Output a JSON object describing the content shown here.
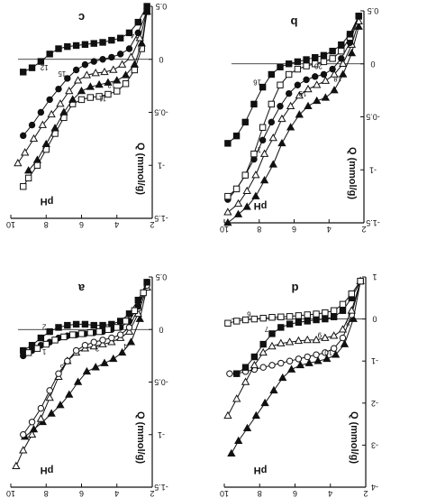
{
  "chart_data": [
    {
      "panel": "c",
      "type": "line",
      "xlabel": "pH",
      "ylabel": "Q (mmol/g)",
      "x_ticks": [
        "2",
        "4",
        "6",
        "8",
        "10"
      ],
      "y_ticks": [
        "-1.5",
        "-1",
        "-0.5",
        "0",
        "0.5"
      ],
      "xlim": [
        2,
        10
      ],
      "ylim": [
        0.5,
        -1.5
      ],
      "series": [
        {
          "name": "11",
          "marker": "open-square",
          "x": [
            2.3,
            2.6,
            3,
            3.5,
            4,
            4.5,
            5,
            5.5,
            6,
            6.5,
            7,
            7.5,
            8,
            8.5,
            9,
            9.3
          ],
          "y": [
            0.45,
            0.1,
            -0.1,
            -0.23,
            -0.3,
            -0.33,
            -0.35,
            -0.36,
            -0.38,
            -0.42,
            -0.55,
            -0.7,
            -0.85,
            -1,
            -1.12,
            -1.2
          ]
        },
        {
          "name": "13",
          "marker": "filled-triangle",
          "x": [
            2.3,
            2.6,
            3,
            3.5,
            4,
            4.5,
            5,
            5.5,
            6,
            6.5,
            7,
            7.5,
            8,
            8.5,
            9
          ],
          "y": [
            0.45,
            0.15,
            -0.05,
            -0.15,
            -0.2,
            -0.22,
            -0.24,
            -0.26,
            -0.3,
            -0.38,
            -0.5,
            -0.65,
            -0.8,
            -0.95,
            -1.05
          ]
        },
        {
          "name": "14",
          "marker": "open-triangle",
          "x": [
            2.3,
            2.7,
            3.2,
            3.7,
            4.2,
            4.7,
            5.2,
            5.7,
            6.2,
            6.7,
            7.2,
            7.7,
            8.2,
            8.7,
            9.2,
            9.6
          ],
          "y": [
            0.45,
            0.2,
            0.02,
            -0.05,
            -0.1,
            -0.12,
            -0.13,
            -0.15,
            -0.2,
            -0.3,
            -0.42,
            -0.52,
            -0.62,
            -0.75,
            -0.88,
            -0.98
          ]
        },
        {
          "name": "15",
          "marker": "filled-circle",
          "x": [
            2.3,
            2.8,
            3.3,
            3.8,
            4.3,
            4.8,
            5.3,
            5.8,
            6.3,
            6.8,
            7.3,
            7.8,
            8.3,
            8.8,
            9.3
          ],
          "y": [
            0.45,
            0.25,
            0.1,
            0.05,
            0.02,
            0,
            -0.02,
            -0.05,
            -0.1,
            -0.18,
            -0.28,
            -0.38,
            -0.5,
            -0.62,
            -0.72
          ]
        },
        {
          "name": "12",
          "marker": "filled-square",
          "x": [
            2.3,
            2.8,
            3.3,
            3.8,
            4.3,
            4.8,
            5.3,
            5.8,
            6.3,
            6.8,
            7.3,
            7.8,
            8.3,
            8.8,
            9.3
          ],
          "y": [
            0.5,
            0.35,
            0.25,
            0.2,
            0.18,
            0.16,
            0.15,
            0.14,
            0.13,
            0.12,
            0.1,
            0.05,
            -0.02,
            -0.08,
            -0.12
          ]
        }
      ]
    },
    {
      "panel": "b",
      "type": "line",
      "xlabel": "pH",
      "ylabel": "Q (mmol/g)",
      "x_ticks": [
        "2",
        "4",
        "6",
        "8",
        "10"
      ],
      "y_ticks": [
        "-1.5",
        "-1",
        "-0.5",
        "0",
        "0.5"
      ],
      "xlim": [
        2,
        10
      ],
      "ylim": [
        0.5,
        -1.5
      ],
      "series": [
        {
          "name": "18",
          "marker": "filled-triangle",
          "x": [
            2.3,
            2.7,
            3.2,
            3.7,
            4.2,
            4.7,
            5.2,
            5.7,
            6.2,
            6.7,
            7.2,
            7.7,
            8.2,
            8.7,
            9.2,
            9.8
          ],
          "y": [
            0.35,
            0.1,
            -0.1,
            -0.25,
            -0.32,
            -0.35,
            -0.4,
            -0.48,
            -0.6,
            -0.75,
            -0.95,
            -1.1,
            -1.25,
            -1.35,
            -1.42,
            -1.5
          ]
        },
        {
          "name": "19",
          "marker": "open-triangle",
          "x": [
            2.3,
            2.7,
            3.2,
            3.7,
            4.2,
            4.7,
            5.2,
            5.7,
            6.2,
            6.7,
            7.2,
            7.7,
            8.2,
            8.7,
            9.2,
            9.8
          ],
          "y": [
            0.4,
            0.18,
            0,
            -0.1,
            -0.16,
            -0.2,
            -0.24,
            -0.3,
            -0.4,
            -0.52,
            -0.7,
            -0.85,
            -1.05,
            -1.2,
            -1.32,
            -1.4
          ]
        },
        {
          "name": "17",
          "marker": "filled-circle",
          "x": [
            2.3,
            2.8,
            3.3,
            3.8,
            4.3,
            4.8,
            5.3,
            5.8,
            6.3,
            6.8,
            7.3,
            7.8,
            8.3,
            8.8,
            9.3,
            9.8
          ],
          "y": [
            0.45,
            0.2,
            0.05,
            -0.05,
            -0.1,
            -0.12,
            -0.15,
            -0.2,
            -0.28,
            -0.4,
            -0.55,
            -0.72,
            -0.9,
            -1.05,
            -1.18,
            -1.28
          ]
        },
        {
          "name": "20",
          "marker": "open-square",
          "x": [
            2.3,
            2.8,
            3.3,
            3.8,
            4.3,
            4.8,
            5.3,
            5.8,
            6.3,
            6.8,
            7.3,
            7.8,
            8.3,
            8.8,
            9.3,
            9.8
          ],
          "y": [
            0.45,
            0.25,
            0.12,
            0.05,
            0.02,
            0,
            -0.02,
            -0.05,
            -0.1,
            -0.2,
            -0.38,
            -0.6,
            -0.85,
            -1.05,
            -1.18,
            -1.25
          ]
        },
        {
          "name": "16",
          "marker": "filled-square",
          "x": [
            2.3,
            2.8,
            3.3,
            3.8,
            4.3,
            4.8,
            5.3,
            5.8,
            6.3,
            6.8,
            7.3,
            7.8,
            8.3,
            8.8,
            9.3,
            9.8
          ],
          "y": [
            0.45,
            0.28,
            0.18,
            0.12,
            0.08,
            0.06,
            0.04,
            0.02,
            0,
            -0.03,
            -0.1,
            -0.22,
            -0.38,
            -0.55,
            -0.68,
            -0.75
          ]
        }
      ]
    },
    {
      "panel": "a",
      "type": "line",
      "xlabel": "pH",
      "ylabel": "Q (mmol/g)",
      "x_ticks": [
        "2",
        "4",
        "6",
        "8",
        "10"
      ],
      "y_ticks": [
        "-1.5",
        "-1",
        "-0.5",
        "0",
        "0.5"
      ],
      "xlim": [
        2,
        10
      ],
      "ylim": [
        0.5,
        -1.5
      ],
      "series": [
        {
          "name": "4",
          "marker": "filled-triangle",
          "x": [
            2.3,
            2.7,
            3.2,
            3.7,
            4.2,
            4.7,
            5.2,
            5.7,
            6.2,
            6.7,
            7.2,
            7.7,
            8.2,
            8.7,
            9.2
          ],
          "y": [
            0.4,
            0.1,
            -0.12,
            -0.22,
            -0.28,
            -0.32,
            -0.36,
            -0.4,
            -0.5,
            -0.62,
            -0.72,
            -0.8,
            -0.88,
            -0.95,
            -1.02
          ]
        },
        {
          "name": "3",
          "marker": "open-triangle",
          "x": [
            2.3,
            2.8,
            3.3,
            3.8,
            4.3,
            4.8,
            5.3,
            5.8,
            6.3,
            6.8,
            7.3,
            7.8,
            8.3,
            8.8,
            9.3,
            9.7
          ],
          "y": [
            0.4,
            0.15,
            -0.02,
            -0.08,
            -0.12,
            -0.14,
            -0.16,
            -0.18,
            -0.22,
            -0.3,
            -0.45,
            -0.65,
            -0.85,
            -1,
            -1.15,
            -1.3
          ]
        },
        {
          "name": "5",
          "marker": "open-circle",
          "x": [
            2.3,
            2.8,
            3.3,
            3.8,
            4.3,
            4.8,
            5.3,
            5.8,
            6.3,
            6.8,
            7.3,
            7.8,
            8.3,
            8.8,
            9.3
          ],
          "y": [
            0.42,
            0.2,
            0.02,
            -0.05,
            -0.08,
            -0.1,
            -0.12,
            -0.15,
            -0.2,
            -0.3,
            -0.42,
            -0.58,
            -0.75,
            -0.88,
            -1
          ]
        },
        {
          "name": "1",
          "marker": "filled-circle",
          "x": [
            2.3,
            2.8,
            3.3,
            3.8,
            4.3,
            4.8,
            5.3,
            5.8,
            6.3,
            6.8,
            7.3,
            7.8,
            8.3,
            8.8,
            9.3
          ],
          "y": [
            0.45,
            0.22,
            0.08,
            0.02,
            0,
            -0.02,
            -0.03,
            -0.04,
            -0.05,
            -0.06,
            -0.08,
            -0.12,
            -0.15,
            -0.2,
            -0.25
          ]
        },
        {
          "name": "2",
          "marker": "filled-square",
          "x": [
            2.3,
            2.8,
            3.3,
            3.8,
            4.3,
            4.8,
            5.3,
            5.8,
            6.3,
            6.8,
            7.3,
            7.8,
            8.3,
            8.8,
            9.3
          ],
          "y": [
            0.45,
            0.28,
            0.15,
            0.08,
            0.05,
            0.04,
            0.04,
            0.05,
            0.05,
            0.04,
            0.02,
            -0.02,
            -0.08,
            -0.15,
            -0.2
          ]
        },
        {
          "name": "",
          "marker": "open-square",
          "x": [
            2.5,
            3,
            3.5,
            4,
            4.5,
            5,
            5.5,
            6,
            6.5,
            7,
            7.5,
            8,
            8.5,
            9
          ],
          "y": [
            0.35,
            0.18,
            0.08,
            0.02,
            0,
            -0.02,
            -0.03,
            -0.04,
            -0.05,
            -0.07,
            -0.1,
            -0.14,
            -0.18,
            -0.22
          ]
        }
      ]
    },
    {
      "panel": "d",
      "type": "line",
      "xlabel": "pH",
      "ylabel": "Q (mmol/g)",
      "x_ticks": [
        "2",
        "4",
        "6",
        "8",
        "10"
      ],
      "y_ticks": [
        "-4",
        "-3",
        "-2",
        "-1",
        "0",
        "1"
      ],
      "xlim": [
        2,
        10
      ],
      "ylim": [
        1,
        -4
      ],
      "series": [
        {
          "name": "8",
          "marker": "filled-triangle",
          "x": [
            2.3,
            2.7,
            3.2,
            3.7,
            4.2,
            4.7,
            5.2,
            5.7,
            6.2,
            6.7,
            7.2,
            7.7,
            8.2,
            8.7,
            9.2,
            9.6
          ],
          "y": [
            0.9,
            0,
            -0.6,
            -0.85,
            -0.95,
            -1,
            -1.05,
            -1.1,
            -1.2,
            -1.4,
            -1.7,
            -2,
            -2.3,
            -2.6,
            -2.9,
            -3.2
          ]
        },
        {
          "name": "10",
          "marker": "open-circle",
          "x": [
            2.3,
            2.8,
            3.3,
            3.8,
            4.3,
            4.8,
            5.3,
            5.8,
            6.3,
            6.8,
            7.3,
            7.8,
            8.3,
            8.8,
            9.3,
            9.7
          ],
          "y": [
            0.9,
            0.1,
            -0.45,
            -0.7,
            -0.8,
            -0.85,
            -0.9,
            -0.95,
            -1,
            -1.05,
            -1.1,
            -1.15,
            -1.2,
            -1.25,
            -1.3,
            -1.3
          ]
        },
        {
          "name": "9",
          "marker": "open-triangle",
          "x": [
            2.3,
            2.8,
            3.3,
            3.8,
            4.3,
            4.8,
            5.3,
            5.8,
            6.3,
            6.8,
            7.3,
            7.8,
            8.3,
            8.8,
            9.3,
            9.8
          ],
          "y": [
            0.9,
            0.2,
            -0.25,
            -0.4,
            -0.45,
            -0.5,
            -0.5,
            -0.52,
            -0.55,
            -0.58,
            -0.65,
            -0.8,
            -1.1,
            -1.5,
            -1.9,
            -2.3
          ]
        },
        {
          "name": "7",
          "marker": "filled-square",
          "x": [
            2.3,
            2.8,
            3.3,
            3.8,
            4.3,
            4.8,
            5.3,
            5.8,
            6.3,
            6.8,
            7.3,
            7.8,
            8.3,
            8.8,
            9.3
          ],
          "y": [
            0.9,
            0.5,
            0.2,
            0.05,
            0,
            -0.02,
            -0.05,
            -0.08,
            -0.12,
            -0.2,
            -0.35,
            -0.6,
            -0.9,
            -1.15,
            -1.3
          ]
        },
        {
          "name": "6",
          "marker": "open-square",
          "x": [
            2.3,
            2.8,
            3.3,
            3.8,
            4.3,
            4.8,
            5.3,
            5.8,
            6.3,
            6.8,
            7.3,
            7.8,
            8.3,
            8.8,
            9.3,
            9.8
          ],
          "y": [
            0.9,
            0.6,
            0.35,
            0.2,
            0.15,
            0.12,
            0.1,
            0.08,
            0.06,
            0.05,
            0.04,
            0.02,
            0,
            -0.02,
            -0.05,
            -0.1
          ]
        }
      ]
    }
  ]
}
